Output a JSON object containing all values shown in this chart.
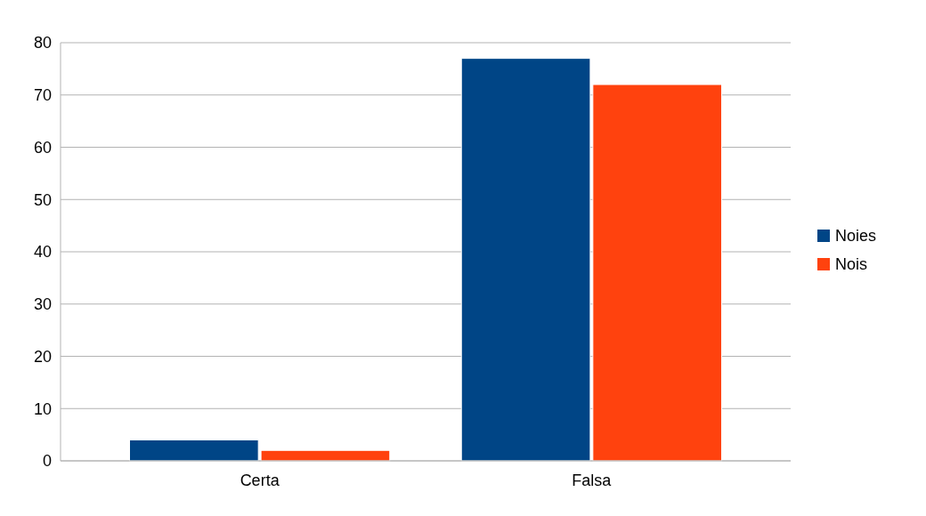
{
  "chart_data": {
    "type": "bar",
    "categories": [
      "Certa",
      "Falsa"
    ],
    "series": [
      {
        "name": "Noies",
        "color": "#004586",
        "values": [
          4,
          77
        ]
      },
      {
        "name": "Nois",
        "color": "#ff420e",
        "values": [
          2,
          72
        ]
      }
    ],
    "ylim": [
      0,
      80
    ],
    "yticks": [
      0,
      10,
      20,
      30,
      40,
      50,
      60,
      70,
      80
    ],
    "grid": "y",
    "legend": "right"
  }
}
